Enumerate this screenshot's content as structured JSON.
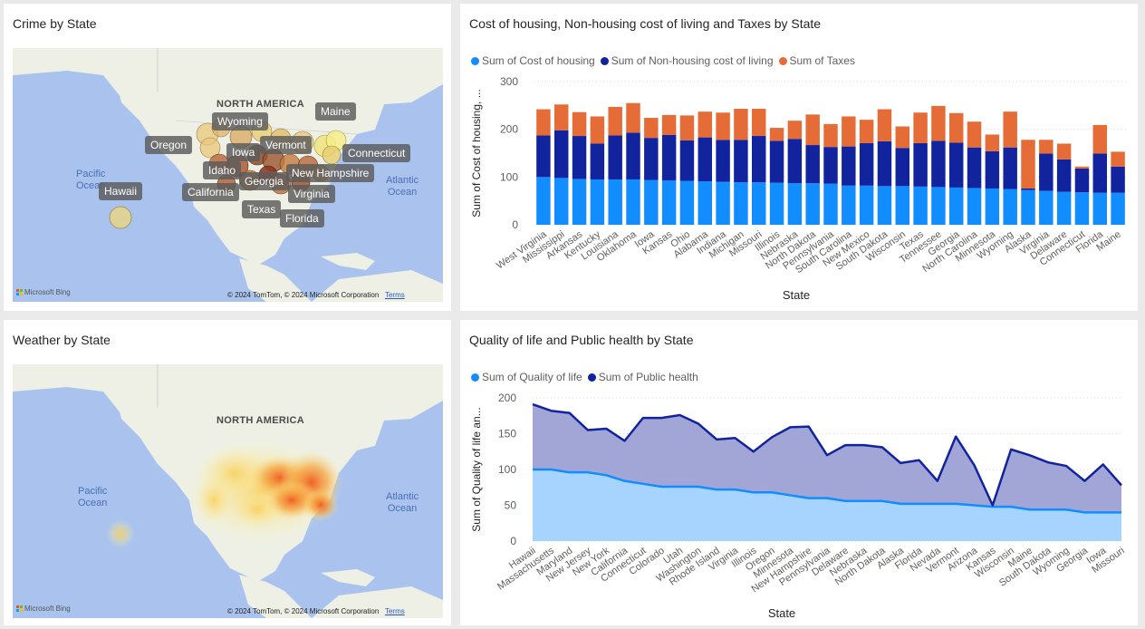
{
  "crime_map": {
    "title": "Crime by State",
    "continent": "NORTH AMERICA",
    "oceans": [
      {
        "name": "Pacific Ocean",
        "lines": [
          "Pacific",
          "Ocean"
        ]
      },
      {
        "name": "Atlantic Ocean",
        "lines": [
          "Atlantic",
          "Ocean"
        ]
      }
    ],
    "state_labels": [
      "Wyoming",
      "Maine",
      "Oregon",
      "Iowa",
      "Vermont",
      "Connecticut",
      "Idaho",
      "New Hampshire",
      "Hawaii",
      "California",
      "Georgia",
      "Virginia",
      "Texas",
      "Florida"
    ],
    "attribution": "© 2024 TomTom, © 2024 Microsoft Corporation",
    "terms": "Terms",
    "bing": "Microsoft Bing"
  },
  "housing_chart": {
    "title": "Cost of housing, Non-housing cost of living and Taxes by State"
  },
  "weather_map": {
    "title": "Weather by State",
    "continent": "NORTH AMERICA",
    "oceans": [
      {
        "name": "Pacific Ocean",
        "lines": [
          "Pacific",
          "Ocean"
        ]
      },
      {
        "name": "Atlantic Ocean",
        "lines": [
          "Atlantic",
          "Ocean"
        ]
      }
    ],
    "attribution": "© 2024 TomTom, © 2024 Microsoft Corporation",
    "terms": "Terms",
    "bing": "Microsoft Bing"
  },
  "quality_chart": {
    "title": "Quality of life and Public health by State"
  },
  "chart_data": [
    {
      "type": "bar",
      "stacked": true,
      "title": "Cost of housing, Non-housing cost of living and Taxes by State",
      "xlabel": "State",
      "ylabel": "Sum of Cost of housing, ...",
      "ylim": [
        0,
        300
      ],
      "yticks": [
        0,
        100,
        200,
        300
      ],
      "grid": true,
      "legend_position": "top-left",
      "categories": [
        "West Virginia",
        "Mississippi",
        "Arkansas",
        "Kentucky",
        "Louisiana",
        "Oklahoma",
        "Iowa",
        "Kansas",
        "Ohio",
        "Alabama",
        "Indiana",
        "Michigan",
        "Missouri",
        "Illinois",
        "Nebraska",
        "North Dakota",
        "Pennsylvania",
        "South Carolina",
        "New Mexico",
        "South Dakota",
        "Wisconsin",
        "Texas",
        "Tennessee",
        "Georgia",
        "North Carolina",
        "Minnesota",
        "Wyoming",
        "Alaska",
        "Virginia",
        "Delaware",
        "Connecticut",
        "Florida",
        "Maine"
      ],
      "series": [
        {
          "name": "Sum of Cost of housing",
          "color": "#118dff",
          "values": [
            100,
            98,
            96,
            95,
            95,
            95,
            94,
            93,
            92,
            91,
            90,
            89,
            89,
            88,
            87,
            87,
            86,
            82,
            82,
            81,
            81,
            80,
            79,
            78,
            77,
            76,
            75,
            73,
            71,
            69,
            68,
            67,
            67
          ]
        },
        {
          "name": "Sum of Non-housing cost of living",
          "color": "#12239e",
          "values": [
            87,
            100,
            90,
            75,
            92,
            98,
            88,
            95,
            85,
            92,
            88,
            89,
            97,
            88,
            93,
            80,
            77,
            82,
            89,
            94,
            80,
            91,
            97,
            94,
            85,
            78,
            87,
            3,
            78,
            68,
            50,
            82,
            55
          ]
        },
        {
          "name": "Sum of Taxes",
          "color": "#e66c37",
          "values": [
            55,
            54,
            50,
            57,
            60,
            62,
            42,
            42,
            52,
            54,
            57,
            65,
            57,
            27,
            38,
            64,
            48,
            63,
            49,
            67,
            45,
            64,
            73,
            62,
            54,
            35,
            75,
            102,
            29,
            33,
            4,
            60,
            31
          ]
        }
      ]
    },
    {
      "type": "area",
      "title": "Quality of life and Public health by State",
      "xlabel": "State",
      "ylabel": "Sum of Quality of life an...",
      "ylim": [
        0,
        200
      ],
      "yticks": [
        0,
        50,
        100,
        150,
        200
      ],
      "grid": true,
      "legend_position": "top-left",
      "categories": [
        "Hawaii",
        "Massachusetts",
        "Maryland",
        "New Jersey",
        "New York",
        "California",
        "Connecticut",
        "Colorado",
        "Utah",
        "Washington",
        "Rhode Island",
        "Virginia",
        "Illinois",
        "Oregon",
        "Minnesota",
        "New Hampshire",
        "Pennsylvania",
        "Delaware",
        "Nebraska",
        "North Dakota",
        "Alaska",
        "Florida",
        "Nevada",
        "Vermont",
        "Arizona",
        "Kansas",
        "Wisconsin",
        "Maine",
        "South Dakota",
        "Wyoming",
        "Georgia",
        "Iowa",
        "Missouri"
      ],
      "series": [
        {
          "name": "Sum of Quality of life",
          "color": "#118dff",
          "values": [
            100,
            100,
            96,
            96,
            92,
            84,
            80,
            76,
            76,
            76,
            72,
            72,
            68,
            68,
            64,
            60,
            60,
            56,
            56,
            56,
            52,
            52,
            52,
            52,
            50,
            48,
            48,
            44,
            44,
            44,
            40,
            40,
            40
          ]
        },
        {
          "name": "Sum of Public health",
          "color": "#12239e",
          "values": [
            191,
            182,
            179,
            155,
            157,
            140,
            172,
            172,
            176,
            164,
            142,
            144,
            125,
            145,
            159,
            160,
            120,
            134,
            134,
            131,
            109,
            113,
            84,
            146,
            106,
            50,
            128,
            120,
            110,
            105,
            84,
            107,
            78
          ]
        }
      ]
    }
  ]
}
